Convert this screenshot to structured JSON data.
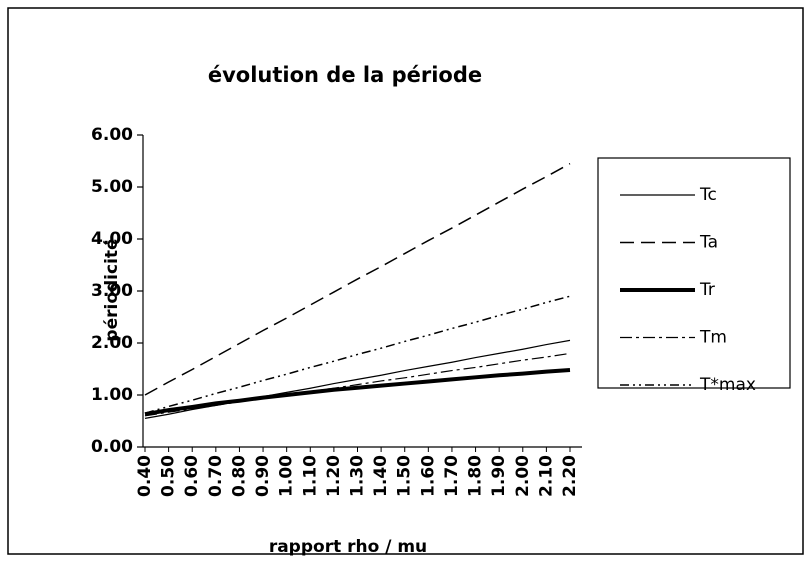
{
  "chart_data": {
    "type": "line",
    "title": "évolution de la période",
    "xlabel": "rapport rho / mu",
    "ylabel": "périodicité",
    "categories": [
      "0.40",
      "0.50",
      "0.60",
      "0.70",
      "0.80",
      "0.90",
      "1.00",
      "1.10",
      "1.20",
      "1.30",
      "1.40",
      "1.50",
      "1.60",
      "1.70",
      "1.80",
      "1.90",
      "2.00",
      "2.10",
      "2.20"
    ],
    "ylim": [
      0,
      6
    ],
    "yticks": [
      {
        "value": 0,
        "label": "0.00"
      },
      {
        "value": 1,
        "label": "1.00"
      },
      {
        "value": 2,
        "label": "2.00"
      },
      {
        "value": 3,
        "label": "3.00"
      },
      {
        "value": 4,
        "label": "4.00"
      },
      {
        "value": 5,
        "label": "5.00"
      },
      {
        "value": 6,
        "label": "6.00"
      }
    ],
    "legend": "right",
    "series": [
      {
        "name": "Tc",
        "color": "#000000",
        "width": 1.2,
        "dash": "none",
        "values": [
          0.55,
          0.63,
          0.72,
          0.8,
          0.88,
          0.97,
          1.05,
          1.13,
          1.22,
          1.3,
          1.38,
          1.47,
          1.55,
          1.63,
          1.72,
          1.8,
          1.88,
          1.97,
          2.05
        ]
      },
      {
        "name": "Ta",
        "color": "#000000",
        "width": 1.5,
        "dash": "14 7",
        "values": [
          1.0,
          1.25,
          1.49,
          1.74,
          1.99,
          2.24,
          2.48,
          2.73,
          2.98,
          3.23,
          3.47,
          3.72,
          3.97,
          4.21,
          4.46,
          4.71,
          4.96,
          5.2,
          5.45
        ]
      },
      {
        "name": "Tr",
        "color": "#000000",
        "width": 4,
        "dash": "none",
        "values": [
          0.63,
          0.71,
          0.77,
          0.84,
          0.89,
          0.95,
          1.0,
          1.05,
          1.1,
          1.14,
          1.18,
          1.22,
          1.26,
          1.3,
          1.34,
          1.38,
          1.41,
          1.45,
          1.48
        ]
      },
      {
        "name": "Tm",
        "color": "#000000",
        "width": 1.2,
        "dash": "12 4 3 4",
        "values": [
          0.6,
          0.67,
          0.73,
          0.8,
          0.87,
          0.93,
          1.0,
          1.07,
          1.13,
          1.2,
          1.27,
          1.33,
          1.4,
          1.47,
          1.53,
          1.6,
          1.67,
          1.73,
          1.8
        ]
      },
      {
        "name": "T*max",
        "color": "#000000",
        "width": 1.5,
        "dash": "9 4 2 4 2 4",
        "values": [
          0.65,
          0.78,
          0.9,
          1.03,
          1.15,
          1.28,
          1.4,
          1.53,
          1.65,
          1.78,
          1.9,
          2.03,
          2.15,
          2.28,
          2.4,
          2.53,
          2.65,
          2.78,
          2.9
        ]
      }
    ]
  }
}
